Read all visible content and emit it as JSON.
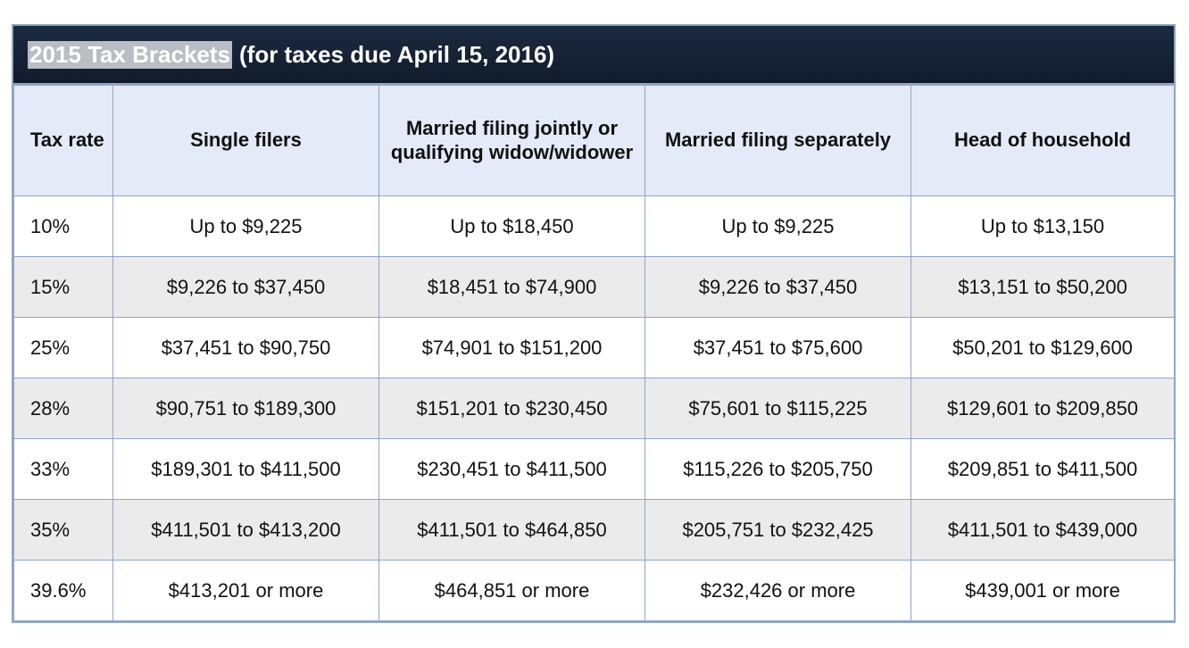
{
  "title": {
    "highlighted": "2015 Tax Brackets",
    "rest": "(for taxes due April 15, 2016)"
  },
  "table": {
    "headers": [
      "Tax rate",
      "Single filers",
      "Married filing jointly or qualifying widow/widower",
      "Married filing separately",
      "Head of household"
    ],
    "rows": [
      [
        "10%",
        "Up to $9,225",
        "Up to $18,450",
        "Up to $9,225",
        "Up to $13,150"
      ],
      [
        "15%",
        "$9,226 to $37,450",
        "$18,451 to $74,900",
        "$9,226 to $37,450",
        "$13,151 to $50,200"
      ],
      [
        "25%",
        "$37,451 to $90,750",
        "$74,901 to $151,200",
        "$37,451 to $75,600",
        "$50,201 to $129,600"
      ],
      [
        "28%",
        "$90,751 to $189,300",
        "$151,201 to $230,450",
        "$75,601 to $115,225",
        "$129,601 to $209,850"
      ],
      [
        "33%",
        "$189,301 to $411,500",
        "$230,451 to $411,500",
        "$115,226 to $205,750",
        "$209,851 to $411,500"
      ],
      [
        "35%",
        "$411,501 to $413,200",
        "$411,501 to $464,850",
        "$205,751 to $232,425",
        "$411,501 to $439,000"
      ],
      [
        "39.6%",
        "$413,201 or more",
        "$464,851 or more",
        "$232,426 or more",
        "$439,001 or more"
      ]
    ]
  },
  "colors": {
    "title_bg": "#111b2b",
    "header_bg": "#e4eaf8",
    "alt_row_bg": "#ebebeb",
    "border": "#8fa6c4"
  }
}
